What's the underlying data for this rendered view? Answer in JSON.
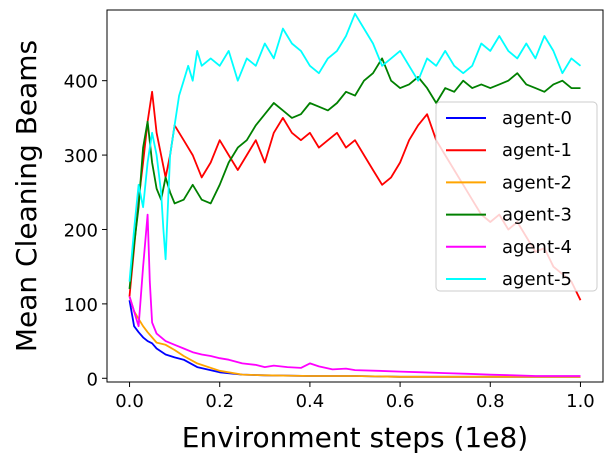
{
  "chart_data": {
    "type": "line",
    "xlabel": "Environment steps (1e8)",
    "ylabel": "Mean Cleaning Beams",
    "xlim": [
      -0.05,
      1.05
    ],
    "ylim": [
      -5,
      495
    ],
    "x_ticks": [
      0.0,
      0.2,
      0.4,
      0.6,
      0.8,
      1.0
    ],
    "x_tick_labels": [
      "0.0",
      "0.2",
      "0.4",
      "0.6",
      "0.8",
      "1.0"
    ],
    "y_ticks": [
      0,
      100,
      200,
      300,
      400
    ],
    "y_tick_labels": [
      "0",
      "100",
      "200",
      "300",
      "400"
    ],
    "grid": false,
    "legend_position": "center-right",
    "series": [
      {
        "name": "agent-0",
        "color": "#0000ff",
        "points": [
          [
            0.0,
            105
          ],
          [
            0.01,
            70
          ],
          [
            0.02,
            62
          ],
          [
            0.03,
            55
          ],
          [
            0.04,
            50
          ],
          [
            0.05,
            47
          ],
          [
            0.06,
            40
          ],
          [
            0.08,
            32
          ],
          [
            0.1,
            28
          ],
          [
            0.12,
            25
          ],
          [
            0.15,
            15
          ],
          [
            0.2,
            8
          ],
          [
            0.25,
            5
          ],
          [
            0.3,
            4
          ],
          [
            0.4,
            3
          ],
          [
            0.5,
            3
          ],
          [
            0.6,
            2
          ],
          [
            0.7,
            2
          ],
          [
            0.8,
            2
          ],
          [
            0.9,
            2
          ],
          [
            1.0,
            2
          ]
        ]
      },
      {
        "name": "agent-1",
        "color": "#ff0000",
        "points": [
          [
            0.0,
            110
          ],
          [
            0.01,
            175
          ],
          [
            0.02,
            240
          ],
          [
            0.03,
            290
          ],
          [
            0.04,
            345
          ],
          [
            0.05,
            385
          ],
          [
            0.06,
            330
          ],
          [
            0.07,
            300
          ],
          [
            0.08,
            270
          ],
          [
            0.09,
            300
          ],
          [
            0.1,
            340
          ],
          [
            0.12,
            320
          ],
          [
            0.14,
            300
          ],
          [
            0.16,
            270
          ],
          [
            0.18,
            290
          ],
          [
            0.2,
            320
          ],
          [
            0.22,
            300
          ],
          [
            0.24,
            280
          ],
          [
            0.26,
            300
          ],
          [
            0.28,
            320
          ],
          [
            0.3,
            290
          ],
          [
            0.32,
            330
          ],
          [
            0.34,
            350
          ],
          [
            0.36,
            330
          ],
          [
            0.38,
            320
          ],
          [
            0.4,
            330
          ],
          [
            0.42,
            310
          ],
          [
            0.44,
            320
          ],
          [
            0.46,
            330
          ],
          [
            0.48,
            310
          ],
          [
            0.5,
            320
          ],
          [
            0.52,
            300
          ],
          [
            0.54,
            280
          ],
          [
            0.56,
            260
          ],
          [
            0.58,
            270
          ],
          [
            0.6,
            290
          ],
          [
            0.62,
            320
          ],
          [
            0.64,
            340
          ],
          [
            0.66,
            355
          ],
          [
            0.68,
            320
          ],
          [
            0.7,
            300
          ],
          [
            0.72,
            280
          ],
          [
            0.74,
            260
          ],
          [
            0.76,
            240
          ],
          [
            0.78,
            220
          ],
          [
            0.8,
            210
          ],
          [
            0.82,
            220
          ],
          [
            0.84,
            200
          ],
          [
            0.86,
            210
          ],
          [
            0.88,
            190
          ],
          [
            0.9,
            170
          ],
          [
            0.92,
            175
          ],
          [
            0.94,
            150
          ],
          [
            0.96,
            140
          ],
          [
            0.98,
            130
          ],
          [
            1.0,
            105
          ]
        ]
      },
      {
        "name": "agent-2",
        "color": "#ffa500",
        "points": [
          [
            0.0,
            110
          ],
          [
            0.01,
            90
          ],
          [
            0.02,
            80
          ],
          [
            0.03,
            70
          ],
          [
            0.04,
            62
          ],
          [
            0.05,
            55
          ],
          [
            0.06,
            48
          ],
          [
            0.08,
            45
          ],
          [
            0.1,
            38
          ],
          [
            0.12,
            30
          ],
          [
            0.15,
            20
          ],
          [
            0.2,
            10
          ],
          [
            0.25,
            5
          ],
          [
            0.3,
            4
          ],
          [
            0.4,
            3
          ],
          [
            0.5,
            3
          ],
          [
            0.6,
            2
          ],
          [
            0.7,
            2
          ],
          [
            0.8,
            2
          ],
          [
            0.9,
            2
          ],
          [
            1.0,
            2
          ]
        ]
      },
      {
        "name": "agent-3",
        "color": "#008000",
        "points": [
          [
            0.0,
            120
          ],
          [
            0.01,
            180
          ],
          [
            0.02,
            230
          ],
          [
            0.03,
            310
          ],
          [
            0.04,
            345
          ],
          [
            0.05,
            290
          ],
          [
            0.06,
            255
          ],
          [
            0.07,
            240
          ],
          [
            0.08,
            270
          ],
          [
            0.09,
            250
          ],
          [
            0.1,
            235
          ],
          [
            0.12,
            240
          ],
          [
            0.14,
            260
          ],
          [
            0.16,
            240
          ],
          [
            0.18,
            235
          ],
          [
            0.2,
            260
          ],
          [
            0.22,
            290
          ],
          [
            0.24,
            310
          ],
          [
            0.26,
            320
          ],
          [
            0.28,
            340
          ],
          [
            0.3,
            355
          ],
          [
            0.32,
            370
          ],
          [
            0.34,
            360
          ],
          [
            0.36,
            350
          ],
          [
            0.38,
            355
          ],
          [
            0.4,
            370
          ],
          [
            0.42,
            365
          ],
          [
            0.44,
            360
          ],
          [
            0.46,
            370
          ],
          [
            0.48,
            385
          ],
          [
            0.5,
            380
          ],
          [
            0.52,
            400
          ],
          [
            0.54,
            410
          ],
          [
            0.56,
            430
          ],
          [
            0.58,
            400
          ],
          [
            0.6,
            390
          ],
          [
            0.62,
            395
          ],
          [
            0.64,
            405
          ],
          [
            0.66,
            390
          ],
          [
            0.68,
            370
          ],
          [
            0.7,
            390
          ],
          [
            0.72,
            385
          ],
          [
            0.74,
            400
          ],
          [
            0.76,
            390
          ],
          [
            0.78,
            395
          ],
          [
            0.8,
            390
          ],
          [
            0.82,
            395
          ],
          [
            0.84,
            400
          ],
          [
            0.86,
            410
          ],
          [
            0.88,
            395
          ],
          [
            0.9,
            390
          ],
          [
            0.92,
            385
          ],
          [
            0.94,
            395
          ],
          [
            0.96,
            400
          ],
          [
            0.98,
            390
          ],
          [
            1.0,
            390
          ]
        ]
      },
      {
        "name": "agent-4",
        "color": "#ff00ff",
        "points": [
          [
            0.0,
            110
          ],
          [
            0.01,
            90
          ],
          [
            0.02,
            70
          ],
          [
            0.03,
            150
          ],
          [
            0.04,
            220
          ],
          [
            0.045,
            130
          ],
          [
            0.05,
            75
          ],
          [
            0.06,
            60
          ],
          [
            0.08,
            50
          ],
          [
            0.1,
            45
          ],
          [
            0.12,
            40
          ],
          [
            0.14,
            35
          ],
          [
            0.16,
            32
          ],
          [
            0.18,
            30
          ],
          [
            0.2,
            27
          ],
          [
            0.22,
            25
          ],
          [
            0.25,
            20
          ],
          [
            0.28,
            18
          ],
          [
            0.3,
            15
          ],
          [
            0.32,
            17
          ],
          [
            0.35,
            15
          ],
          [
            0.38,
            14
          ],
          [
            0.4,
            20
          ],
          [
            0.42,
            16
          ],
          [
            0.45,
            12
          ],
          [
            0.48,
            13
          ],
          [
            0.5,
            11
          ],
          [
            0.55,
            10
          ],
          [
            0.6,
            9
          ],
          [
            0.65,
            8
          ],
          [
            0.7,
            7
          ],
          [
            0.75,
            6
          ],
          [
            0.8,
            5
          ],
          [
            0.85,
            4
          ],
          [
            0.9,
            3
          ],
          [
            0.95,
            3
          ],
          [
            1.0,
            3
          ]
        ]
      },
      {
        "name": "agent-5",
        "color": "#00ffff",
        "points": [
          [
            0.0,
            130
          ],
          [
            0.01,
            200
          ],
          [
            0.02,
            260
          ],
          [
            0.03,
            230
          ],
          [
            0.04,
            290
          ],
          [
            0.05,
            330
          ],
          [
            0.06,
            300
          ],
          [
            0.07,
            250
          ],
          [
            0.075,
            200
          ],
          [
            0.08,
            160
          ],
          [
            0.09,
            300
          ],
          [
            0.1,
            340
          ],
          [
            0.11,
            380
          ],
          [
            0.12,
            400
          ],
          [
            0.13,
            420
          ],
          [
            0.14,
            400
          ],
          [
            0.15,
            440
          ],
          [
            0.16,
            420
          ],
          [
            0.18,
            430
          ],
          [
            0.2,
            420
          ],
          [
            0.22,
            440
          ],
          [
            0.24,
            400
          ],
          [
            0.26,
            430
          ],
          [
            0.28,
            420
          ],
          [
            0.3,
            450
          ],
          [
            0.32,
            430
          ],
          [
            0.34,
            470
          ],
          [
            0.36,
            450
          ],
          [
            0.38,
            440
          ],
          [
            0.4,
            420
          ],
          [
            0.42,
            410
          ],
          [
            0.44,
            430
          ],
          [
            0.46,
            440
          ],
          [
            0.48,
            460
          ],
          [
            0.5,
            490
          ],
          [
            0.52,
            470
          ],
          [
            0.54,
            450
          ],
          [
            0.56,
            420
          ],
          [
            0.58,
            430
          ],
          [
            0.6,
            440
          ],
          [
            0.62,
            420
          ],
          [
            0.64,
            400
          ],
          [
            0.66,
            430
          ],
          [
            0.68,
            420
          ],
          [
            0.7,
            440
          ],
          [
            0.72,
            420
          ],
          [
            0.74,
            410
          ],
          [
            0.76,
            420
          ],
          [
            0.78,
            450
          ],
          [
            0.8,
            440
          ],
          [
            0.82,
            460
          ],
          [
            0.84,
            440
          ],
          [
            0.86,
            430
          ],
          [
            0.88,
            450
          ],
          [
            0.9,
            430
          ],
          [
            0.92,
            460
          ],
          [
            0.94,
            440
          ],
          [
            0.96,
            410
          ],
          [
            0.98,
            430
          ],
          [
            1.0,
            420
          ]
        ]
      }
    ]
  }
}
